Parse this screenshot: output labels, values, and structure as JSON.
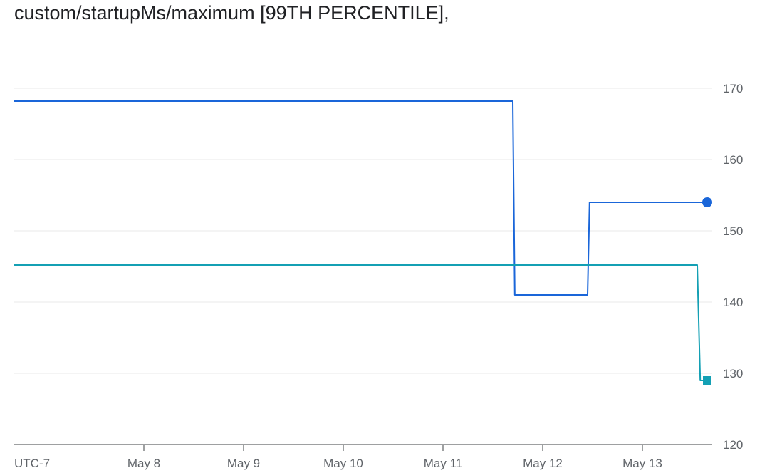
{
  "title": "custom/startupMs/maximum [99TH PERCENTILE],",
  "chart_data": {
    "type": "line",
    "step": true,
    "x_axis_label_left": "UTC-7",
    "x_ticks": [
      {
        "label": "May 8",
        "x": 2.3
      },
      {
        "label": "May 9",
        "x": 3.3
      },
      {
        "label": "May 10",
        "x": 4.3
      },
      {
        "label": "May 11",
        "x": 5.3
      },
      {
        "label": "May 12",
        "x": 6.3
      },
      {
        "label": "May 13",
        "x": 7.3
      }
    ],
    "xlim": [
      1.0,
      8.1
    ],
    "ylim": [
      120,
      170
    ],
    "y_ticks": [
      120,
      130,
      140,
      150,
      160,
      170
    ],
    "y_axis_position": "right",
    "grid": true,
    "series": [
      {
        "color": "#1a66d9",
        "end_marker": "circle",
        "points": [
          [
            1.0,
            168.2
          ],
          [
            6.0,
            168.2
          ],
          [
            6.02,
            141
          ],
          [
            6.75,
            141
          ],
          [
            6.77,
            154
          ],
          [
            7.95,
            154
          ]
        ]
      },
      {
        "color": "#14a0b4",
        "end_marker": "square",
        "points": [
          [
            1.0,
            145.2
          ],
          [
            7.85,
            145.2
          ],
          [
            7.88,
            129
          ],
          [
            7.95,
            129
          ]
        ]
      }
    ]
  }
}
